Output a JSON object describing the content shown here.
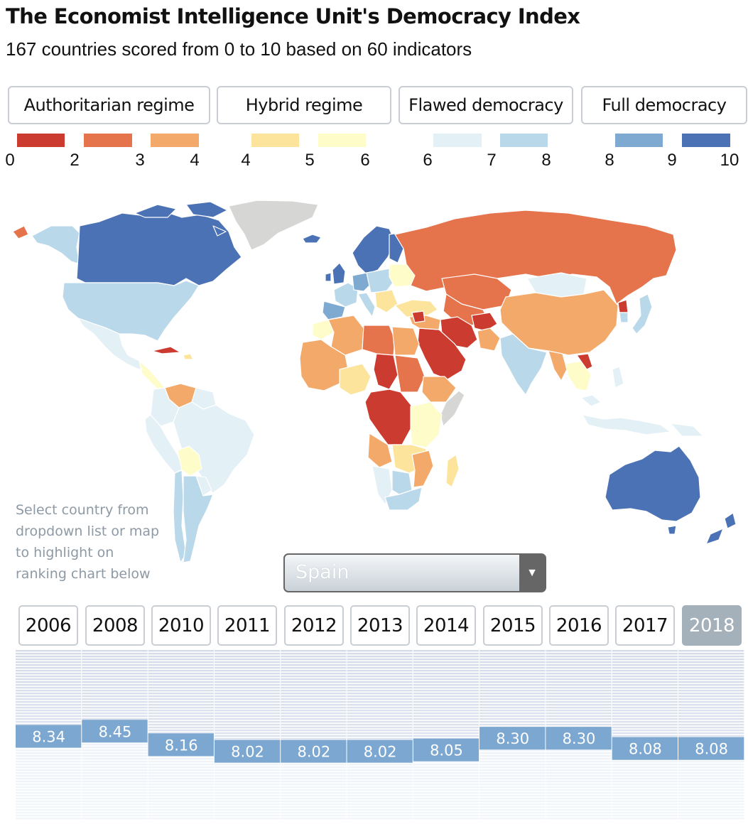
{
  "header": {
    "title": "The Economist Intelligence Unit's Democracy Index",
    "subtitle": "167 countries scored from 0 to 10 based on 60 indicators"
  },
  "legend": {
    "categories": [
      {
        "label": "Authoritarian regime"
      },
      {
        "label": "Hybrid regime"
      },
      {
        "label": "Flawed democracy"
      },
      {
        "label": "Full democracy"
      }
    ],
    "swatches": [
      "#cc3b2f",
      "#e5734c",
      "#f3a96a",
      "#fce49c",
      "#fefcc8",
      "#e3f0f6",
      "#b9d8e9",
      "#7eaad2",
      "#4b72b4"
    ],
    "ticks": [
      "0",
      "2",
      "3",
      "4",
      "4",
      "5",
      "6",
      "6",
      "7",
      "8",
      "8",
      "9",
      "10"
    ]
  },
  "map": {
    "hint": "Select country from dropdown list or map to highlight on ranking chart below"
  },
  "dropdown": {
    "selected": "Spain"
  },
  "years": [
    "2006",
    "2008",
    "2010",
    "2011",
    "2012",
    "2013",
    "2014",
    "2015",
    "2016",
    "2017",
    "2018"
  ],
  "active_year": "2018",
  "chart_data": {
    "type": "ranking",
    "country": "Spain",
    "score_range": [
      10,
      0
    ],
    "x": [
      "2006",
      "2008",
      "2010",
      "2011",
      "2012",
      "2013",
      "2014",
      "2015",
      "2016",
      "2017",
      "2018"
    ],
    "series": [
      {
        "name": "Spain",
        "values": [
          8.34,
          8.45,
          8.16,
          8.02,
          8.02,
          8.02,
          8.05,
          8.3,
          8.3,
          8.08,
          8.08
        ]
      }
    ]
  },
  "colors": {
    "highlight": "#7ba7d0",
    "no_data": "#d6d6d4",
    "button_border": "#c8ced3",
    "active_year_bg": "#a4b0ba"
  }
}
